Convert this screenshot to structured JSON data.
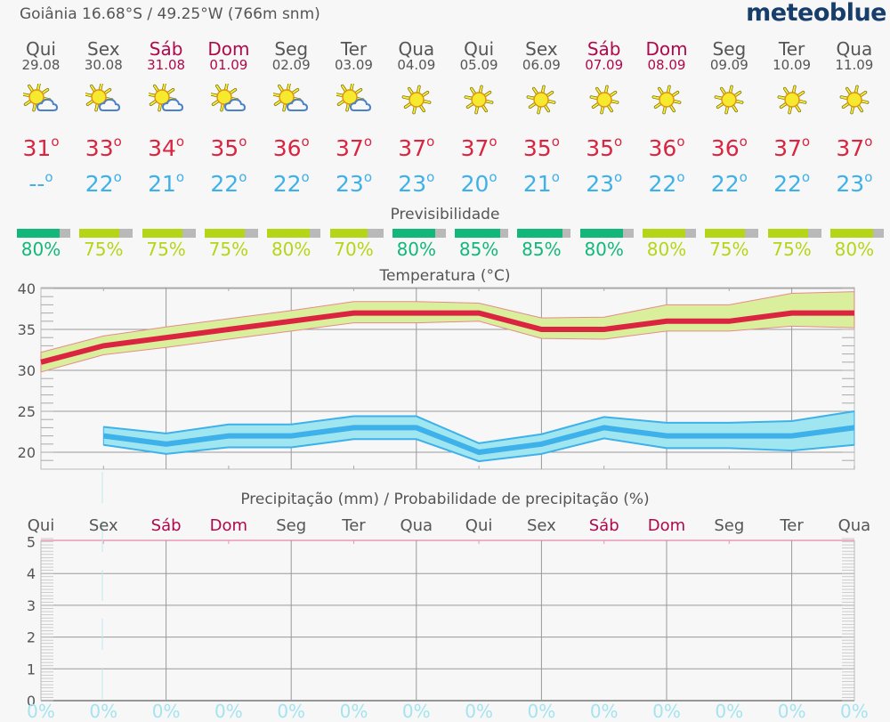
{
  "header": {
    "title": "Goiânia  16.68°S / 49.25°W (766m snm)",
    "logo": "meteoblue"
  },
  "days": [
    {
      "name": "Qui",
      "date": "29.08",
      "weekend": false,
      "icon": "sun-cloud-icon",
      "tmax": "31",
      "tmin": "--",
      "predictability": 80,
      "pred_label": "80%",
      "pred_color": "#12b87a",
      "precip_prob": "0%"
    },
    {
      "name": "Sex",
      "date": "30.08",
      "weekend": false,
      "icon": "sun-cloud-icon",
      "tmax": "33",
      "tmin": "22",
      "predictability": 75,
      "pred_label": "75%",
      "pred_color": "#b5d616",
      "precip_prob": "0%"
    },
    {
      "name": "Sáb",
      "date": "31.08",
      "weekend": true,
      "icon": "sun-cloud-icon",
      "tmax": "34",
      "tmin": "21",
      "predictability": 75,
      "pred_label": "75%",
      "pred_color": "#b5d616",
      "precip_prob": "0%"
    },
    {
      "name": "Dom",
      "date": "01.09",
      "weekend": true,
      "icon": "sun-cloud-icon",
      "tmax": "35",
      "tmin": "22",
      "predictability": 75,
      "pred_label": "75%",
      "pred_color": "#b5d616",
      "precip_prob": "0%"
    },
    {
      "name": "Seg",
      "date": "02.09",
      "weekend": false,
      "icon": "sun-cloud-icon",
      "tmax": "36",
      "tmin": "22",
      "predictability": 80,
      "pred_label": "80%",
      "pred_color": "#b5d616",
      "precip_prob": "0%"
    },
    {
      "name": "Ter",
      "date": "03.09",
      "weekend": false,
      "icon": "sun-cloud-icon",
      "tmax": "37",
      "tmin": "23",
      "predictability": 70,
      "pred_label": "70%",
      "pred_color": "#b5d616",
      "precip_prob": "0%"
    },
    {
      "name": "Qua",
      "date": "04.09",
      "weekend": false,
      "icon": "sun-icon",
      "tmax": "37",
      "tmin": "23",
      "predictability": 80,
      "pred_label": "80%",
      "pred_color": "#12b87a",
      "precip_prob": "0%"
    },
    {
      "name": "Qui",
      "date": "05.09",
      "weekend": false,
      "icon": "sun-icon",
      "tmax": "37",
      "tmin": "20",
      "predictability": 85,
      "pred_label": "85%",
      "pred_color": "#12b87a",
      "precip_prob": "0%"
    },
    {
      "name": "Sex",
      "date": "06.09",
      "weekend": false,
      "icon": "sun-icon",
      "tmax": "35",
      "tmin": "21",
      "predictability": 85,
      "pred_label": "85%",
      "pred_color": "#12b87a",
      "precip_prob": "0%"
    },
    {
      "name": "Sáb",
      "date": "07.09",
      "weekend": true,
      "icon": "sun-icon",
      "tmax": "35",
      "tmin": "23",
      "predictability": 80,
      "pred_label": "80%",
      "pred_color": "#12b87a",
      "precip_prob": "0%"
    },
    {
      "name": "Dom",
      "date": "08.09",
      "weekend": true,
      "icon": "sun-icon",
      "tmax": "36",
      "tmin": "22",
      "predictability": 80,
      "pred_label": "80%",
      "pred_color": "#b5d616",
      "precip_prob": "0%"
    },
    {
      "name": "Seg",
      "date": "09.09",
      "weekend": false,
      "icon": "sun-icon",
      "tmax": "36",
      "tmin": "22",
      "predictability": 75,
      "pred_label": "75%",
      "pred_color": "#b5d616",
      "precip_prob": "0%"
    },
    {
      "name": "Ter",
      "date": "10.09",
      "weekend": false,
      "icon": "sun-icon",
      "tmax": "37",
      "tmin": "22",
      "predictability": 75,
      "pred_label": "75%",
      "pred_color": "#b5d616",
      "precip_prob": "0%"
    },
    {
      "name": "Qua",
      "date": "11.09",
      "weekend": false,
      "icon": "sun-icon",
      "tmax": "37",
      "tmin": "23",
      "predictability": 80,
      "pred_label": "80%",
      "pred_color": "#b5d616",
      "precip_prob": "0%"
    }
  ],
  "degree_symbol": "o",
  "sections": {
    "predictability_title": "Previsibilidade",
    "temperature_title": "Temperatura (°C)",
    "precipitation_title": "Precipitação (mm) / Probabilidade de precipitação (%)"
  },
  "colors": {
    "tmax": "#da2440",
    "tmin": "#3eb0ea",
    "tmax_band": "#d9ef9c",
    "tmin_band": "#9fe6f0",
    "weekend": "#b0084c",
    "pred_high": "#12b87a",
    "pred_mid": "#b5d616",
    "pred_rest": "#b9b9b9",
    "precip_pct": "#a3e4f0",
    "logo": "#173e6b"
  },
  "chart_data": [
    {
      "type": "line",
      "title": "Temperatura (°C)",
      "categories": [
        "29.08",
        "30.08",
        "31.08",
        "01.09",
        "02.09",
        "03.09",
        "04.09",
        "05.09",
        "06.09",
        "07.09",
        "08.09",
        "09.09",
        "10.09",
        "11.09"
      ],
      "ylim": [
        18,
        41
      ],
      "yticks": [
        20,
        25,
        30,
        35,
        40
      ],
      "grid": true,
      "series": [
        {
          "name": "Max",
          "color": "#da2440",
          "values": [
            31,
            33,
            34,
            35,
            36,
            37,
            37,
            37,
            35,
            35,
            36,
            36,
            37,
            37
          ]
        },
        {
          "name": "Max band upper",
          "values": [
            32.2,
            34.2,
            35.3,
            36.3,
            37.3,
            38.4,
            38.4,
            38.2,
            36.4,
            36.5,
            38.0,
            38.0,
            39.4,
            39.6
          ]
        },
        {
          "name": "Max band lower",
          "values": [
            29.8,
            31.9,
            32.8,
            33.8,
            34.8,
            35.8,
            35.8,
            36.0,
            33.9,
            33.8,
            34.8,
            34.8,
            35.4,
            35.2
          ]
        },
        {
          "name": "Min",
          "color": "#3eb0ea",
          "values": [
            null,
            22,
            21,
            22,
            22,
            23,
            23,
            20,
            21,
            23,
            22,
            22,
            22,
            23
          ]
        },
        {
          "name": "Min band upper",
          "values": [
            null,
            23.1,
            22.3,
            23.4,
            23.4,
            24.4,
            24.4,
            21.1,
            22.2,
            24.3,
            23.6,
            23.6,
            23.8,
            25.0
          ]
        },
        {
          "name": "Min band lower",
          "values": [
            null,
            20.9,
            19.8,
            20.6,
            20.6,
            21.6,
            21.6,
            18.9,
            19.8,
            21.7,
            20.5,
            20.5,
            20.2,
            20.9
          ]
        }
      ]
    },
    {
      "type": "bar",
      "title": "Precipitação (mm) / Probabilidade de precipitação (%)",
      "categories": [
        "Qui",
        "Sex",
        "Sáb",
        "Dom",
        "Seg",
        "Ter",
        "Qua",
        "Qui",
        "Sex",
        "Sáb",
        "Dom",
        "Seg",
        "Ter",
        "Qua"
      ],
      "ylim": [
        0,
        5.2
      ],
      "yticks": [
        0,
        1,
        2,
        3,
        4,
        5
      ],
      "grid": true,
      "series": [
        {
          "name": "Precipitação (mm)",
          "values": [
            0,
            0,
            0,
            0,
            0,
            0,
            0,
            0,
            0,
            0,
            0,
            0,
            0,
            0
          ]
        },
        {
          "name": "Probabilidade de precipitação (%)",
          "values": [
            0,
            0,
            0,
            0,
            0,
            0,
            0,
            0,
            0,
            0,
            0,
            0,
            0,
            0
          ]
        }
      ]
    }
  ],
  "temp_axis_labels": [
    "40",
    "35",
    "30",
    "25",
    "20"
  ],
  "precip_axis_labels": [
    "5",
    "4",
    "3",
    "2",
    "1",
    "0"
  ]
}
